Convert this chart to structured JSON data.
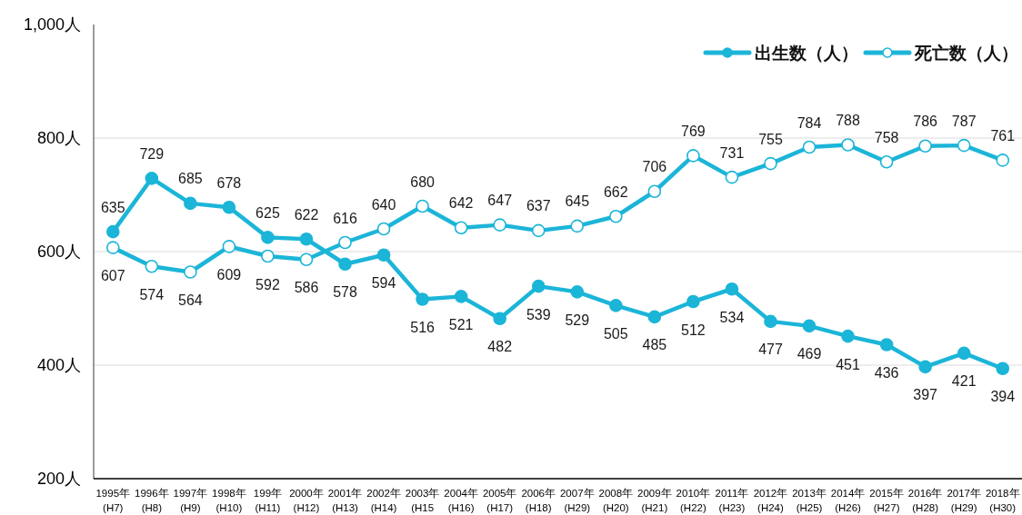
{
  "chart_data": {
    "type": "line",
    "categories": [
      "1995年\n(H7)",
      "1996年\n(H8)",
      "1997年\n(H9)",
      "1998年\n(H10)",
      "199年\n(H11)",
      "2000年\n(H12)",
      "2001年\n(H13)",
      "2002年\n(H14)",
      "2003年\n(H15",
      "2004年\n(H16)",
      "2005年\n(H17)",
      "2006年\n(H18)",
      "2007年\n(H29)",
      "2008年\n(H20)",
      "2009年\n(H21)",
      "2010年\n(H22)",
      "2011年\n(H23)",
      "2012年\n(H24)",
      "2013年\n(H25)",
      "2014年\n(H26)",
      "2015年\n(H27)",
      "2016年\n(H28)",
      "2017年\n(H29)",
      "2018年\n(H30)"
    ],
    "series": [
      {
        "name": "出生数（人）",
        "color": "#1bb5d8",
        "values": [
          635,
          729,
          685,
          678,
          625,
          622,
          578,
          594,
          516,
          521,
          482,
          539,
          529,
          505,
          485,
          512,
          534,
          477,
          469,
          451,
          436,
          397,
          421,
          394
        ]
      },
      {
        "name": "死亡数（人）",
        "color": "#1bb5d8",
        "values": [
          607,
          574,
          564,
          609,
          592,
          586,
          616,
          640,
          680,
          642,
          647,
          637,
          645,
          662,
          706,
          769,
          731,
          755,
          784,
          788,
          758,
          786,
          787,
          761
        ]
      }
    ],
    "ylim": [
      200,
      1000
    ],
    "yticks": [
      {
        "value": 200,
        "label": "200人"
      },
      {
        "value": 400,
        "label": "400人"
      },
      {
        "value": 600,
        "label": "600人"
      },
      {
        "value": 800,
        "label": "800人"
      },
      {
        "value": 1000,
        "label": "1,000人"
      }
    ],
    "grid": "y",
    "legend": "top right",
    "marker": "circle",
    "line_style": "solid",
    "data_labels": true
  }
}
